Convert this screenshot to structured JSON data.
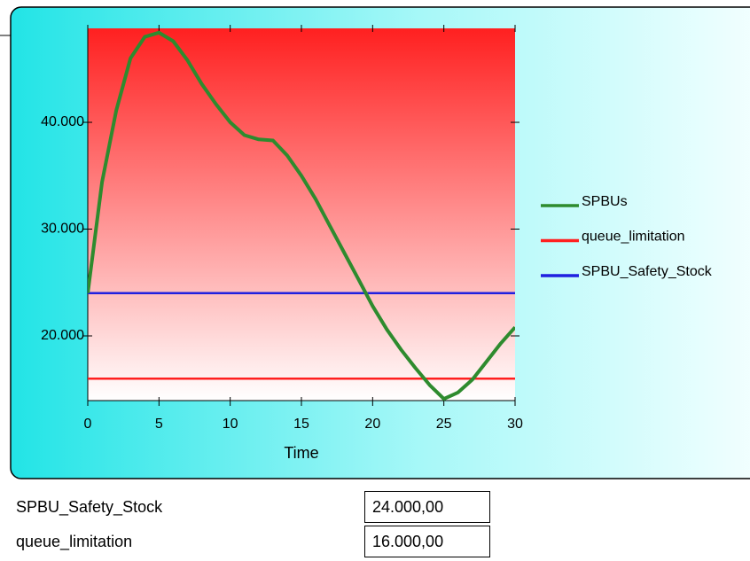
{
  "chart_data": {
    "type": "line",
    "x_label": "Time",
    "x": [
      0,
      1,
      2,
      3,
      4,
      5,
      6,
      7,
      8,
      9,
      10,
      11,
      12,
      13,
      14,
      15,
      16,
      17,
      18,
      19,
      20,
      21,
      22,
      23,
      24,
      25,
      26,
      27,
      28,
      29,
      30
    ],
    "xlim": [
      0,
      30
    ],
    "xticks": [
      0,
      5,
      10,
      15,
      20,
      25,
      30
    ],
    "ylim": [
      13940,
      48800
    ],
    "yticks": [
      {
        "value": 20000,
        "label": "20.000"
      },
      {
        "value": 30000,
        "label": "30.000"
      },
      {
        "value": 40000,
        "label": "40.000"
      }
    ],
    "legend": "right",
    "series": [
      {
        "name": "SPBUs",
        "color": "#2e8b2e",
        "values": [
          24000,
          34400,
          41100,
          46000,
          48000,
          48400,
          47600,
          45800,
          43600,
          41700,
          40000,
          38800,
          38400,
          38300,
          36900,
          35000,
          32800,
          30300,
          27800,
          25300,
          22800,
          20600,
          18700,
          17000,
          15400,
          14100,
          14700,
          15900,
          17600,
          19300,
          20800
        ]
      },
      {
        "name": "queue_limitation",
        "color": "#ff2020",
        "values": [
          16000,
          16000,
          16000,
          16000,
          16000,
          16000,
          16000,
          16000,
          16000,
          16000,
          16000,
          16000,
          16000,
          16000,
          16000,
          16000,
          16000,
          16000,
          16000,
          16000,
          16000,
          16000,
          16000,
          16000,
          16000,
          16000,
          16000,
          16000,
          16000,
          16000,
          16000
        ]
      },
      {
        "name": "SPBU_Safety_Stock",
        "color": "#2020e0",
        "values": [
          24000,
          24000,
          24000,
          24000,
          24000,
          24000,
          24000,
          24000,
          24000,
          24000,
          24000,
          24000,
          24000,
          24000,
          24000,
          24000,
          24000,
          24000,
          24000,
          24000,
          24000,
          24000,
          24000,
          24000,
          24000,
          24000,
          24000,
          24000,
          24000,
          24000,
          24000
        ]
      }
    ]
  },
  "inputs": [
    {
      "label": "SPBU_Safety_Stock",
      "value": "24.000,00"
    },
    {
      "label": "queue_limitation",
      "value": "16.000,00"
    }
  ]
}
